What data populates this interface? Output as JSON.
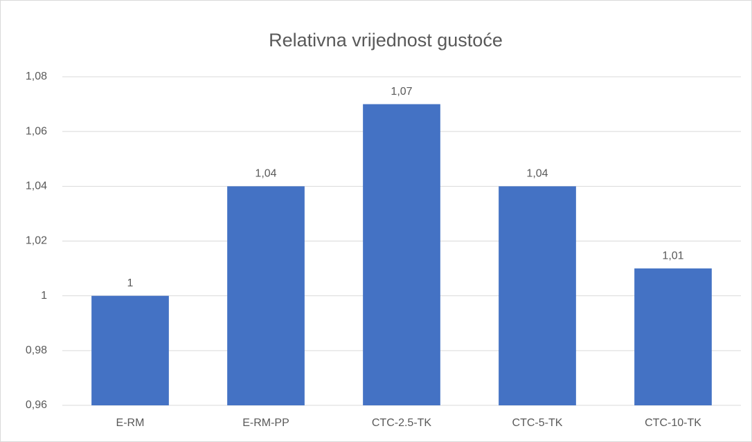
{
  "chart_data": {
    "type": "bar",
    "title": "Relativna vrijednost gustoće",
    "categories": [
      "E-RM",
      "E-RM-PP",
      "CTC-2.5-TK",
      "CTC-5-TK",
      "CTC-10-TK"
    ],
    "values": [
      1,
      1.04,
      1.07,
      1.04,
      1.01
    ],
    "value_labels": [
      "1",
      "1,04",
      "1,07",
      "1,04",
      "1,01"
    ],
    "color": "#4472c4",
    "ylim": [
      0.96,
      1.08
    ],
    "yticks": [
      {
        "value": 0.96,
        "label": "0,96"
      },
      {
        "value": 0.98,
        "label": "0,98"
      },
      1,
      {
        "value": 1.02,
        "label": "1,02"
      },
      {
        "value": 1.04,
        "label": "1,04"
      },
      {
        "value": 1.06,
        "label": "1,06"
      },
      {
        "value": 1.08,
        "label": "1,08"
      }
    ],
    "grid": true
  }
}
